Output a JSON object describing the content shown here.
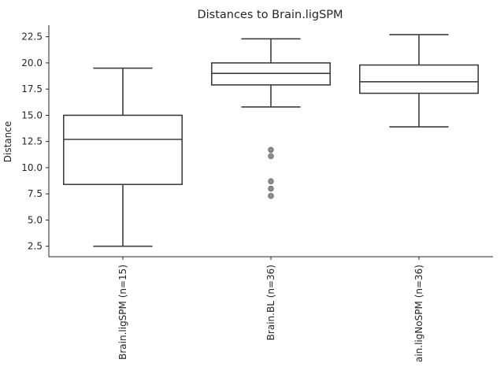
{
  "chart_data": {
    "type": "box",
    "title": "Distances to Brain.ligSPM",
    "xlabel": "",
    "ylabel": "Distance",
    "ylim": [
      1.5,
      23.6
    ],
    "yticks": [
      "2.5",
      "5.0",
      "7.5",
      "10.0",
      "12.5",
      "15.0",
      "17.5",
      "20.0",
      "22.5"
    ],
    "grid": false,
    "categories": [
      "Brain.ligSPM (n=15)",
      "Brain.BL (n=36)",
      "ain.ligNoSPM (n=36)"
    ],
    "boxes": [
      {
        "whisker_low": 2.5,
        "q1": 8.4,
        "median": 12.7,
        "q3": 15.0,
        "whisker_high": 19.5,
        "outliers": []
      },
      {
        "whisker_low": 15.8,
        "q1": 17.9,
        "median": 19.0,
        "q3": 20.0,
        "whisker_high": 22.3,
        "outliers": [
          11.7,
          11.1,
          8.7,
          8.0,
          7.3
        ]
      },
      {
        "whisker_low": 13.9,
        "q1": 17.1,
        "median": 18.2,
        "q3": 19.8,
        "whisker_high": 22.7,
        "outliers": []
      }
    ],
    "colors": {
      "box_fill": "#ffffff",
      "line": "#3f3f3f",
      "outlier": "#8c8c8c",
      "axis": "#262626"
    }
  }
}
